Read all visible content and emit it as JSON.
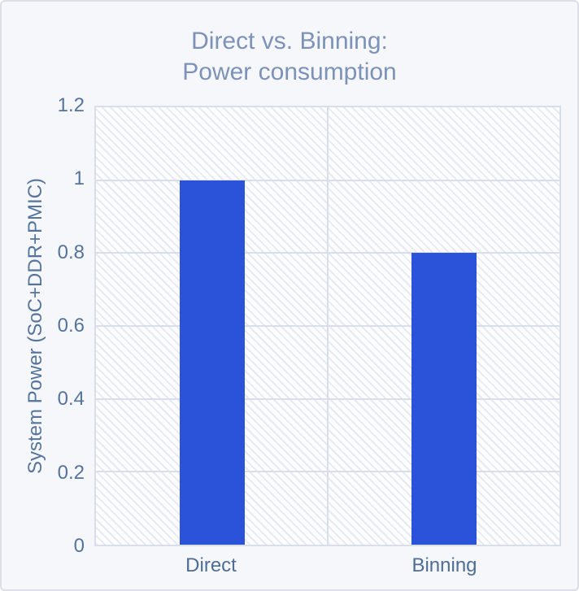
{
  "chart_data": {
    "type": "bar",
    "title": "Direct vs. Binning: Power consumption",
    "title_lines": [
      "Direct vs. Binning:",
      "Power consumption"
    ],
    "categories": [
      "Direct",
      "Binning"
    ],
    "values": [
      1,
      0.8
    ],
    "xlabel": "",
    "ylabel": "System Power (SoC+DDR+PMIC)",
    "ylim": [
      0,
      1.2
    ],
    "yticks": [
      0,
      0.2,
      0.4,
      0.6,
      0.8,
      1,
      1.2
    ],
    "ytick_labels": [
      "0",
      "0.2",
      "0.4",
      "0.6",
      "0.8",
      "1",
      "1.2"
    ],
    "grid": true,
    "legend_position": "none",
    "colors": {
      "bar": "#2b53da",
      "title_text": "#7c92b8",
      "axis_text": "#54749e",
      "category_text": "#4d6d97",
      "gridline": "#d8dfeb",
      "plot_hatch": "#e7eaf2",
      "plot_background": "#fdfdff",
      "page_background": "#f6f7fa",
      "card_border": "#dcdfe8"
    }
  }
}
